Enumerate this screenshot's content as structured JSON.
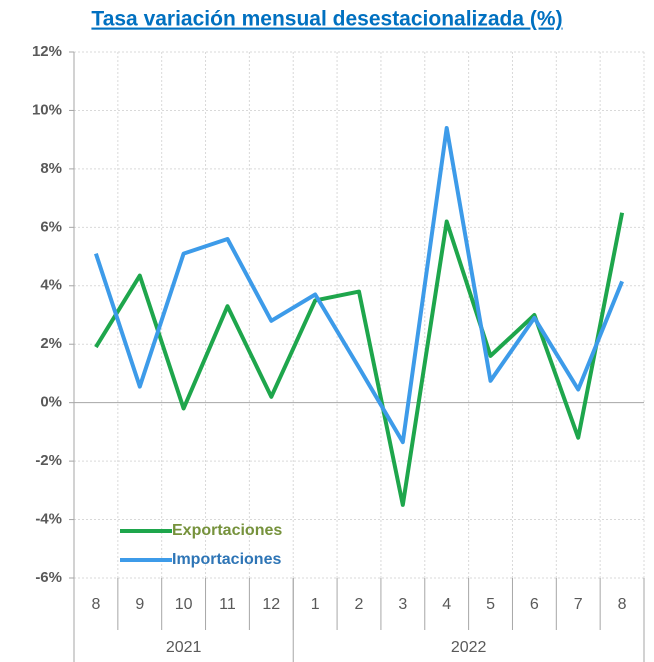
{
  "chart_data": {
    "type": "line",
    "title": "Tasa variación mensual desestacionalizada (%)",
    "groups": [
      {
        "label": "2021",
        "categories": [
          "8",
          "9",
          "10",
          "11",
          "12"
        ]
      },
      {
        "label": "2022",
        "categories": [
          "1",
          "2",
          "3",
          "4",
          "5",
          "6",
          "7",
          "8"
        ]
      }
    ],
    "series": [
      {
        "name": "Exportaciones",
        "color": "#1ea64c",
        "label_color": "#76923c",
        "values": [
          1.9,
          4.35,
          -0.2,
          3.3,
          0.2,
          3.5,
          3.8,
          -3.5,
          6.2,
          1.6,
          3.0,
          -1.2,
          6.5
        ]
      },
      {
        "name": "Importaciones",
        "color": "#3d9be9",
        "label_color": "#2e75b6",
        "values": [
          5.1,
          0.55,
          5.1,
          5.6,
          2.8,
          3.7,
          1.2,
          -1.35,
          9.4,
          0.75,
          2.9,
          0.45,
          4.15
        ]
      }
    ],
    "ylim": [
      -6,
      12
    ],
    "yticks": [
      {
        "value": -6,
        "label": "-6%"
      },
      {
        "value": -4,
        "label": "-4%"
      },
      {
        "value": -2,
        "label": "-2%"
      },
      {
        "value": 0,
        "label": "0%"
      },
      {
        "value": 2,
        "label": "2%"
      },
      {
        "value": 4,
        "label": "4%"
      },
      {
        "value": 6,
        "label": "6%"
      },
      {
        "value": 8,
        "label": "8%"
      },
      {
        "value": 10,
        "label": "10%"
      },
      {
        "value": 12,
        "label": "12%"
      }
    ],
    "grid": true,
    "legend": "lower left"
  }
}
